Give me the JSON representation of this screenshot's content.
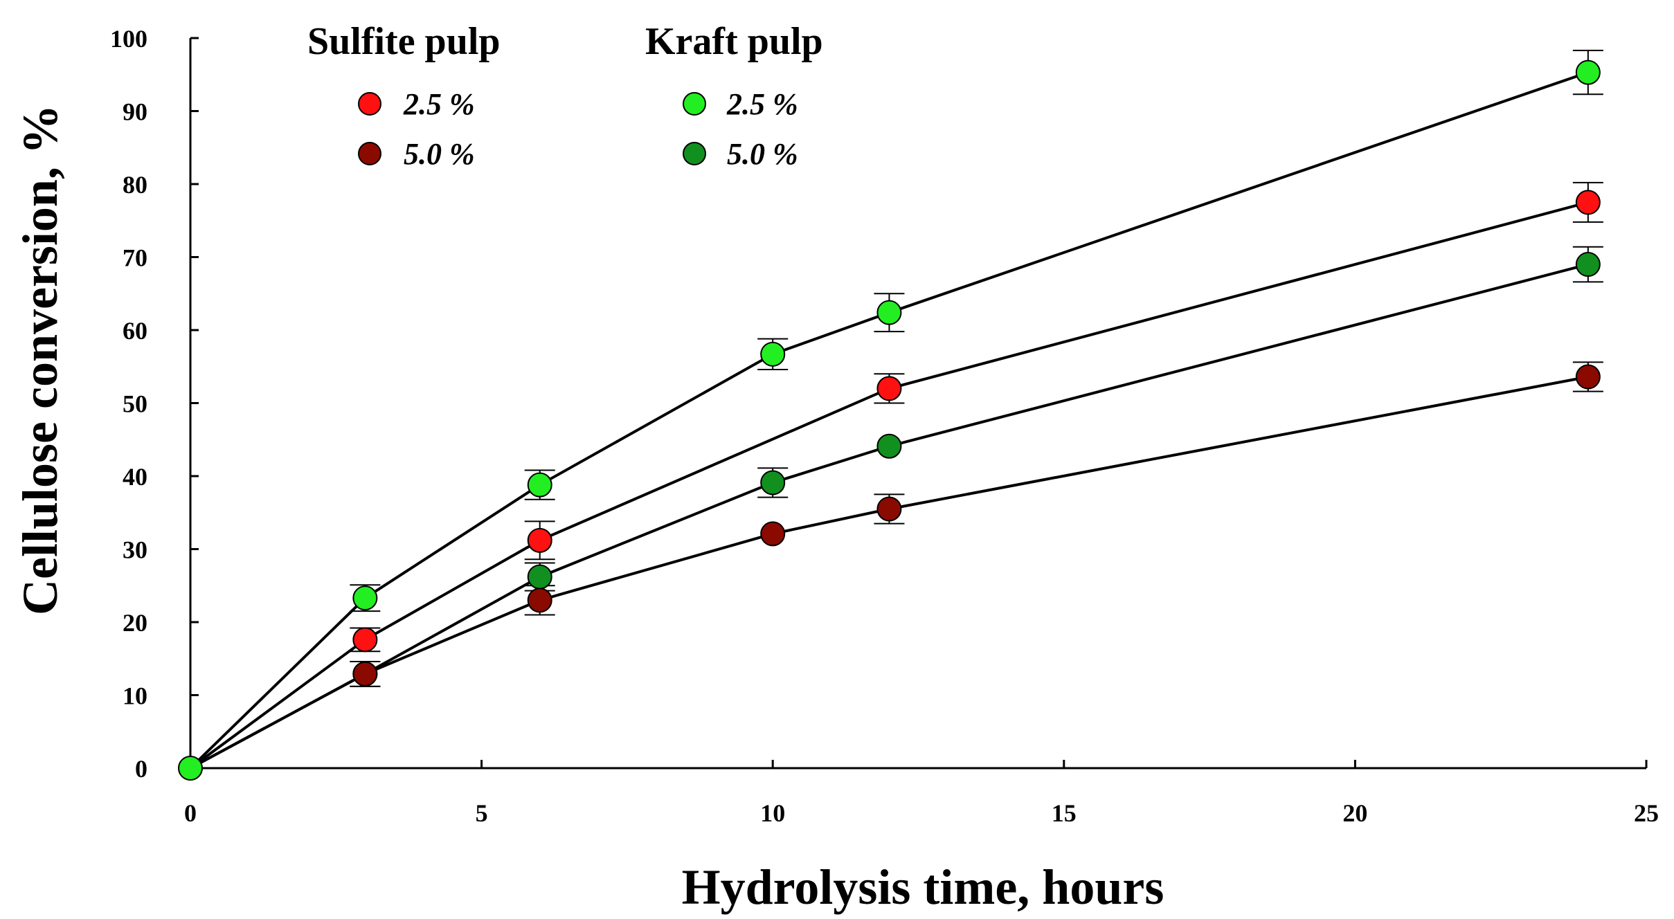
{
  "chart_data": {
    "type": "line",
    "title": "",
    "xlabel": "Hydrolysis time, hours",
    "ylabel": "Cellulose conversion, %",
    "xlim": [
      0,
      25
    ],
    "ylim": [
      0,
      100
    ],
    "x_ticks": [
      "0",
      "5",
      "10",
      "15",
      "20",
      "25"
    ],
    "y_ticks": [
      "0",
      "10",
      "20",
      "30",
      "40",
      "50",
      "60",
      "70",
      "80",
      "90",
      "100"
    ],
    "grid": false,
    "legend": {
      "groups": [
        {
          "heading": "Sulfite pulp",
          "entries": [
            "2.5 %",
            "5.0 %"
          ]
        },
        {
          "heading": "Kraft pulp",
          "entries": [
            "2.5 %",
            "5.0 %"
          ]
        }
      ],
      "placement": "top-left"
    },
    "series": [
      {
        "name": "Kraft pulp 2.5 %",
        "color": "#22ee22",
        "x": [
          0,
          3,
          6,
          10,
          12,
          24
        ],
        "y": [
          0,
          23.3,
          38.8,
          56.7,
          62.4,
          95.3
        ],
        "err": [
          0,
          1.8,
          2.0,
          2.1,
          2.6,
          3.0
        ]
      },
      {
        "name": "Sulfite pulp 2.5 %",
        "color": "#ff1111",
        "x": [
          3,
          6,
          12,
          24
        ],
        "y": [
          17.6,
          31.2,
          52.0,
          77.5
        ],
        "err": [
          1.6,
          2.6,
          2.0,
          2.7
        ]
      },
      {
        "name": "Kraft pulp 5.0 %",
        "color": "#11901f",
        "x": [
          3,
          6,
          10,
          12,
          24
        ],
        "y": [
          12.9,
          26.2,
          39.1,
          44.1,
          69.0
        ],
        "err": [
          1.7,
          1.9,
          2.0,
          0,
          2.4
        ]
      },
      {
        "name": "Sulfite pulp 5.0 %",
        "color": "#8b0a00",
        "x": [
          3,
          6,
          10,
          12,
          24
        ],
        "y": [
          12.9,
          23.0,
          32.1,
          35.5,
          53.6
        ],
        "err": [
          1.7,
          2.0,
          0,
          2.0,
          2.0
        ]
      }
    ],
    "lines": [
      {
        "x": [
          0,
          3,
          6,
          10,
          12,
          24
        ],
        "y": [
          0,
          23.3,
          38.8,
          56.7,
          62.4,
          95.3
        ]
      },
      {
        "x": [
          0,
          3,
          6,
          12,
          24
        ],
        "y": [
          0,
          17.6,
          31.2,
          52.0,
          77.5
        ]
      },
      {
        "x": [
          0,
          3,
          6,
          10,
          12,
          24
        ],
        "y": [
          0,
          12.9,
          26.2,
          39.1,
          44.1,
          69.0
        ]
      },
      {
        "x": [
          0,
          3,
          6,
          10,
          12,
          24
        ],
        "y": [
          0,
          12.9,
          23.0,
          32.1,
          35.5,
          53.6
        ]
      }
    ]
  }
}
